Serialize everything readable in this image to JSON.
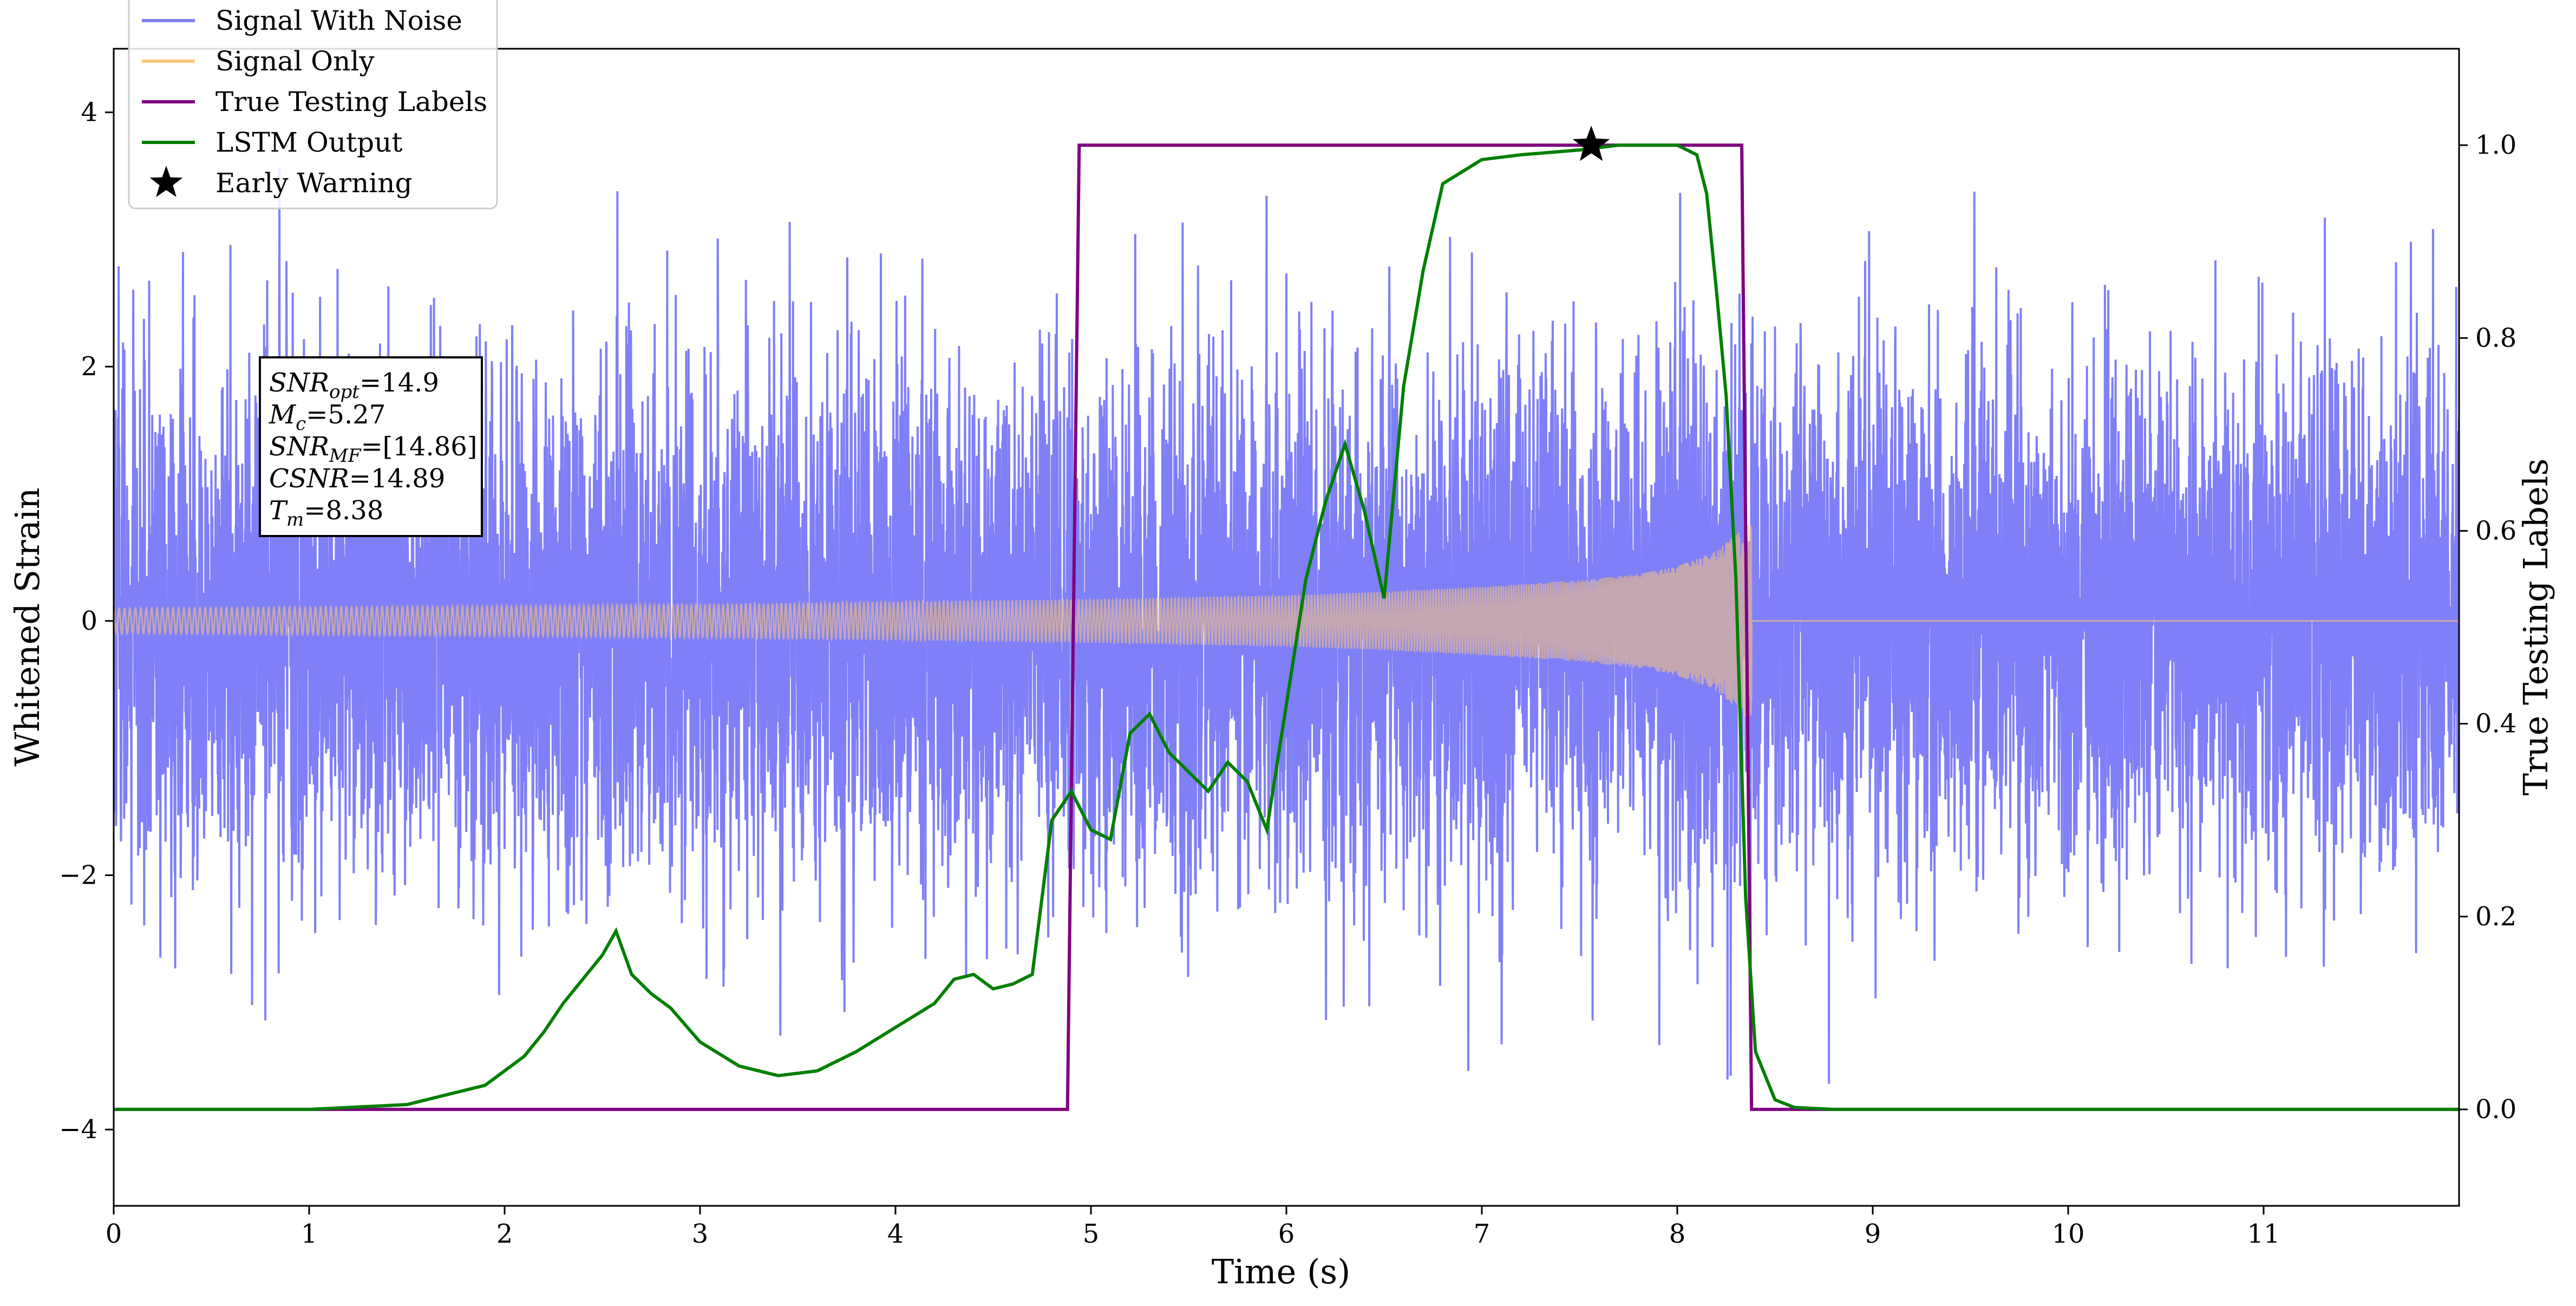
{
  "chart_data": {
    "type": "line",
    "xlabel": "Time (s)",
    "ylabel_left": "Whitened Strain",
    "ylabel_right": "True Testing Labels",
    "xlim": [
      0,
      12
    ],
    "ylim_left": [
      -4.6,
      4.5
    ],
    "ylim_right": [
      -0.1,
      1.1
    ],
    "xticks": [
      0,
      1,
      2,
      3,
      4,
      5,
      6,
      7,
      8,
      9,
      10,
      11
    ],
    "yticks_left": [
      -4,
      -2,
      0,
      2,
      4
    ],
    "yticks_right": [
      0.0,
      0.2,
      0.4,
      0.6,
      0.8,
      1.0
    ],
    "grid": false,
    "legend_position": "top-left",
    "legend": [
      {
        "name": "Signal With Noise",
        "color": "#7f7ff7",
        "marker": "line"
      },
      {
        "name": "Signal Only",
        "color": "#ffc878",
        "marker": "line"
      },
      {
        "name": "True Testing Labels",
        "color": "#800080",
        "marker": "line"
      },
      {
        "name": "LSTM Output",
        "color": "#007f00",
        "marker": "line"
      },
      {
        "name": "Early Warning",
        "color": "#000000",
        "marker": "star"
      }
    ],
    "annotation": {
      "lines": [
        {
          "base": "SNR",
          "sub": "opt",
          "value": "=14.9"
        },
        {
          "base": "M",
          "sub": "c",
          "value": "=5.27"
        },
        {
          "base": "SNR",
          "sub": "MF",
          "value": "=[14.86]"
        },
        {
          "base": "CSNR",
          "sub": "",
          "value": "=14.89"
        },
        {
          "base": "T",
          "sub": "m",
          "value": "=8.38"
        }
      ]
    },
    "series": [
      {
        "name": "Signal With Noise",
        "axis": "left",
        "color": "#7f7ff7",
        "noise_std": 1.0,
        "x_range": [
          0,
          12
        ]
      },
      {
        "name": "Signal Only",
        "axis": "left",
        "color": "#ffc878",
        "envelope_x": [
          0,
          1,
          2,
          3,
          4,
          5,
          6,
          6.5,
          7,
          7.5,
          7.8,
          8.0,
          8.2,
          8.3,
          8.38
        ],
        "envelope_amplitude": [
          0.1,
          0.11,
          0.12,
          0.13,
          0.15,
          0.17,
          0.2,
          0.23,
          0.27,
          0.32,
          0.37,
          0.43,
          0.55,
          0.68,
          0.82
        ],
        "x_range": [
          0,
          12
        ]
      },
      {
        "name": "True Testing Labels",
        "axis": "right",
        "color": "#800080",
        "x": [
          0,
          4.88,
          4.94,
          8.33,
          8.38,
          12
        ],
        "y": [
          0,
          0,
          1,
          1,
          0,
          0
        ]
      },
      {
        "name": "LSTM Output",
        "axis": "right",
        "color": "#007f00",
        "x": [
          0,
          0.5,
          1.0,
          1.5,
          1.7,
          1.9,
          2.0,
          2.1,
          2.2,
          2.3,
          2.4,
          2.5,
          2.57,
          2.65,
          2.75,
          2.85,
          3.0,
          3.2,
          3.4,
          3.6,
          3.8,
          4.0,
          4.2,
          4.3,
          4.4,
          4.5,
          4.6,
          4.7,
          4.8,
          4.9,
          5.0,
          5.1,
          5.2,
          5.3,
          5.4,
          5.5,
          5.6,
          5.7,
          5.8,
          5.9,
          6.0,
          6.1,
          6.2,
          6.3,
          6.4,
          6.5,
          6.6,
          6.7,
          6.8,
          7.0,
          7.2,
          7.5,
          7.7,
          7.9,
          8.0,
          8.1,
          8.15,
          8.2,
          8.25,
          8.3,
          8.35,
          8.4,
          8.5,
          8.6,
          8.8,
          9.0,
          10,
          11,
          12
        ],
        "y": [
          0,
          0,
          0,
          0.005,
          0.015,
          0.025,
          0.04,
          0.055,
          0.08,
          0.11,
          0.135,
          0.16,
          0.185,
          0.14,
          0.12,
          0.105,
          0.07,
          0.045,
          0.035,
          0.04,
          0.06,
          0.085,
          0.11,
          0.135,
          0.14,
          0.125,
          0.13,
          0.14,
          0.3,
          0.33,
          0.29,
          0.28,
          0.39,
          0.41,
          0.37,
          0.35,
          0.33,
          0.36,
          0.34,
          0.29,
          0.42,
          0.55,
          0.63,
          0.69,
          0.62,
          0.53,
          0.75,
          0.87,
          0.96,
          0.985,
          0.99,
          0.995,
          1.0,
          1.0,
          1.0,
          0.99,
          0.95,
          0.85,
          0.74,
          0.55,
          0.22,
          0.06,
          0.01,
          0.002,
          0,
          0,
          0,
          0,
          0
        ]
      }
    ],
    "early_warning": {
      "x": 7.56,
      "y": 1.0,
      "axis": "right"
    }
  }
}
